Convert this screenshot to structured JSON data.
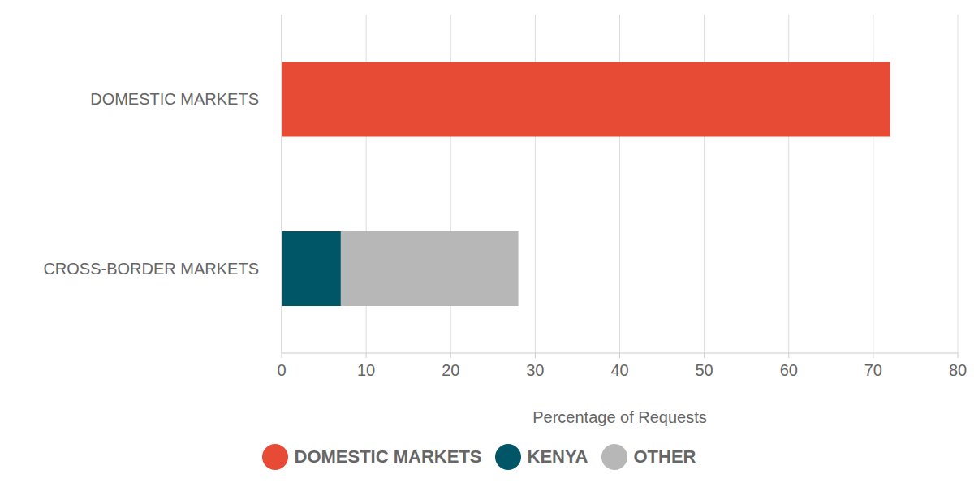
{
  "chart_data": {
    "type": "bar",
    "orientation": "horizontal",
    "stacked": true,
    "categories": [
      "DOMESTIC MARKETS",
      "CROSS-BORDER MARKETS"
    ],
    "series": [
      {
        "name": "DOMESTIC MARKETS",
        "color": "#e84b35",
        "values": [
          72,
          null
        ]
      },
      {
        "name": "KENYA",
        "color": "#005566",
        "values": [
          null,
          7
        ]
      },
      {
        "name": "OTHER",
        "color": "#b7b7b7",
        "values": [
          null,
          21
        ]
      }
    ],
    "xlim": [
      0,
      80
    ],
    "xticks": [
      0,
      10,
      20,
      30,
      40,
      50,
      60,
      70,
      80
    ],
    "x_label": "Percentage of Requests",
    "grid": true,
    "legend": "bottom"
  }
}
